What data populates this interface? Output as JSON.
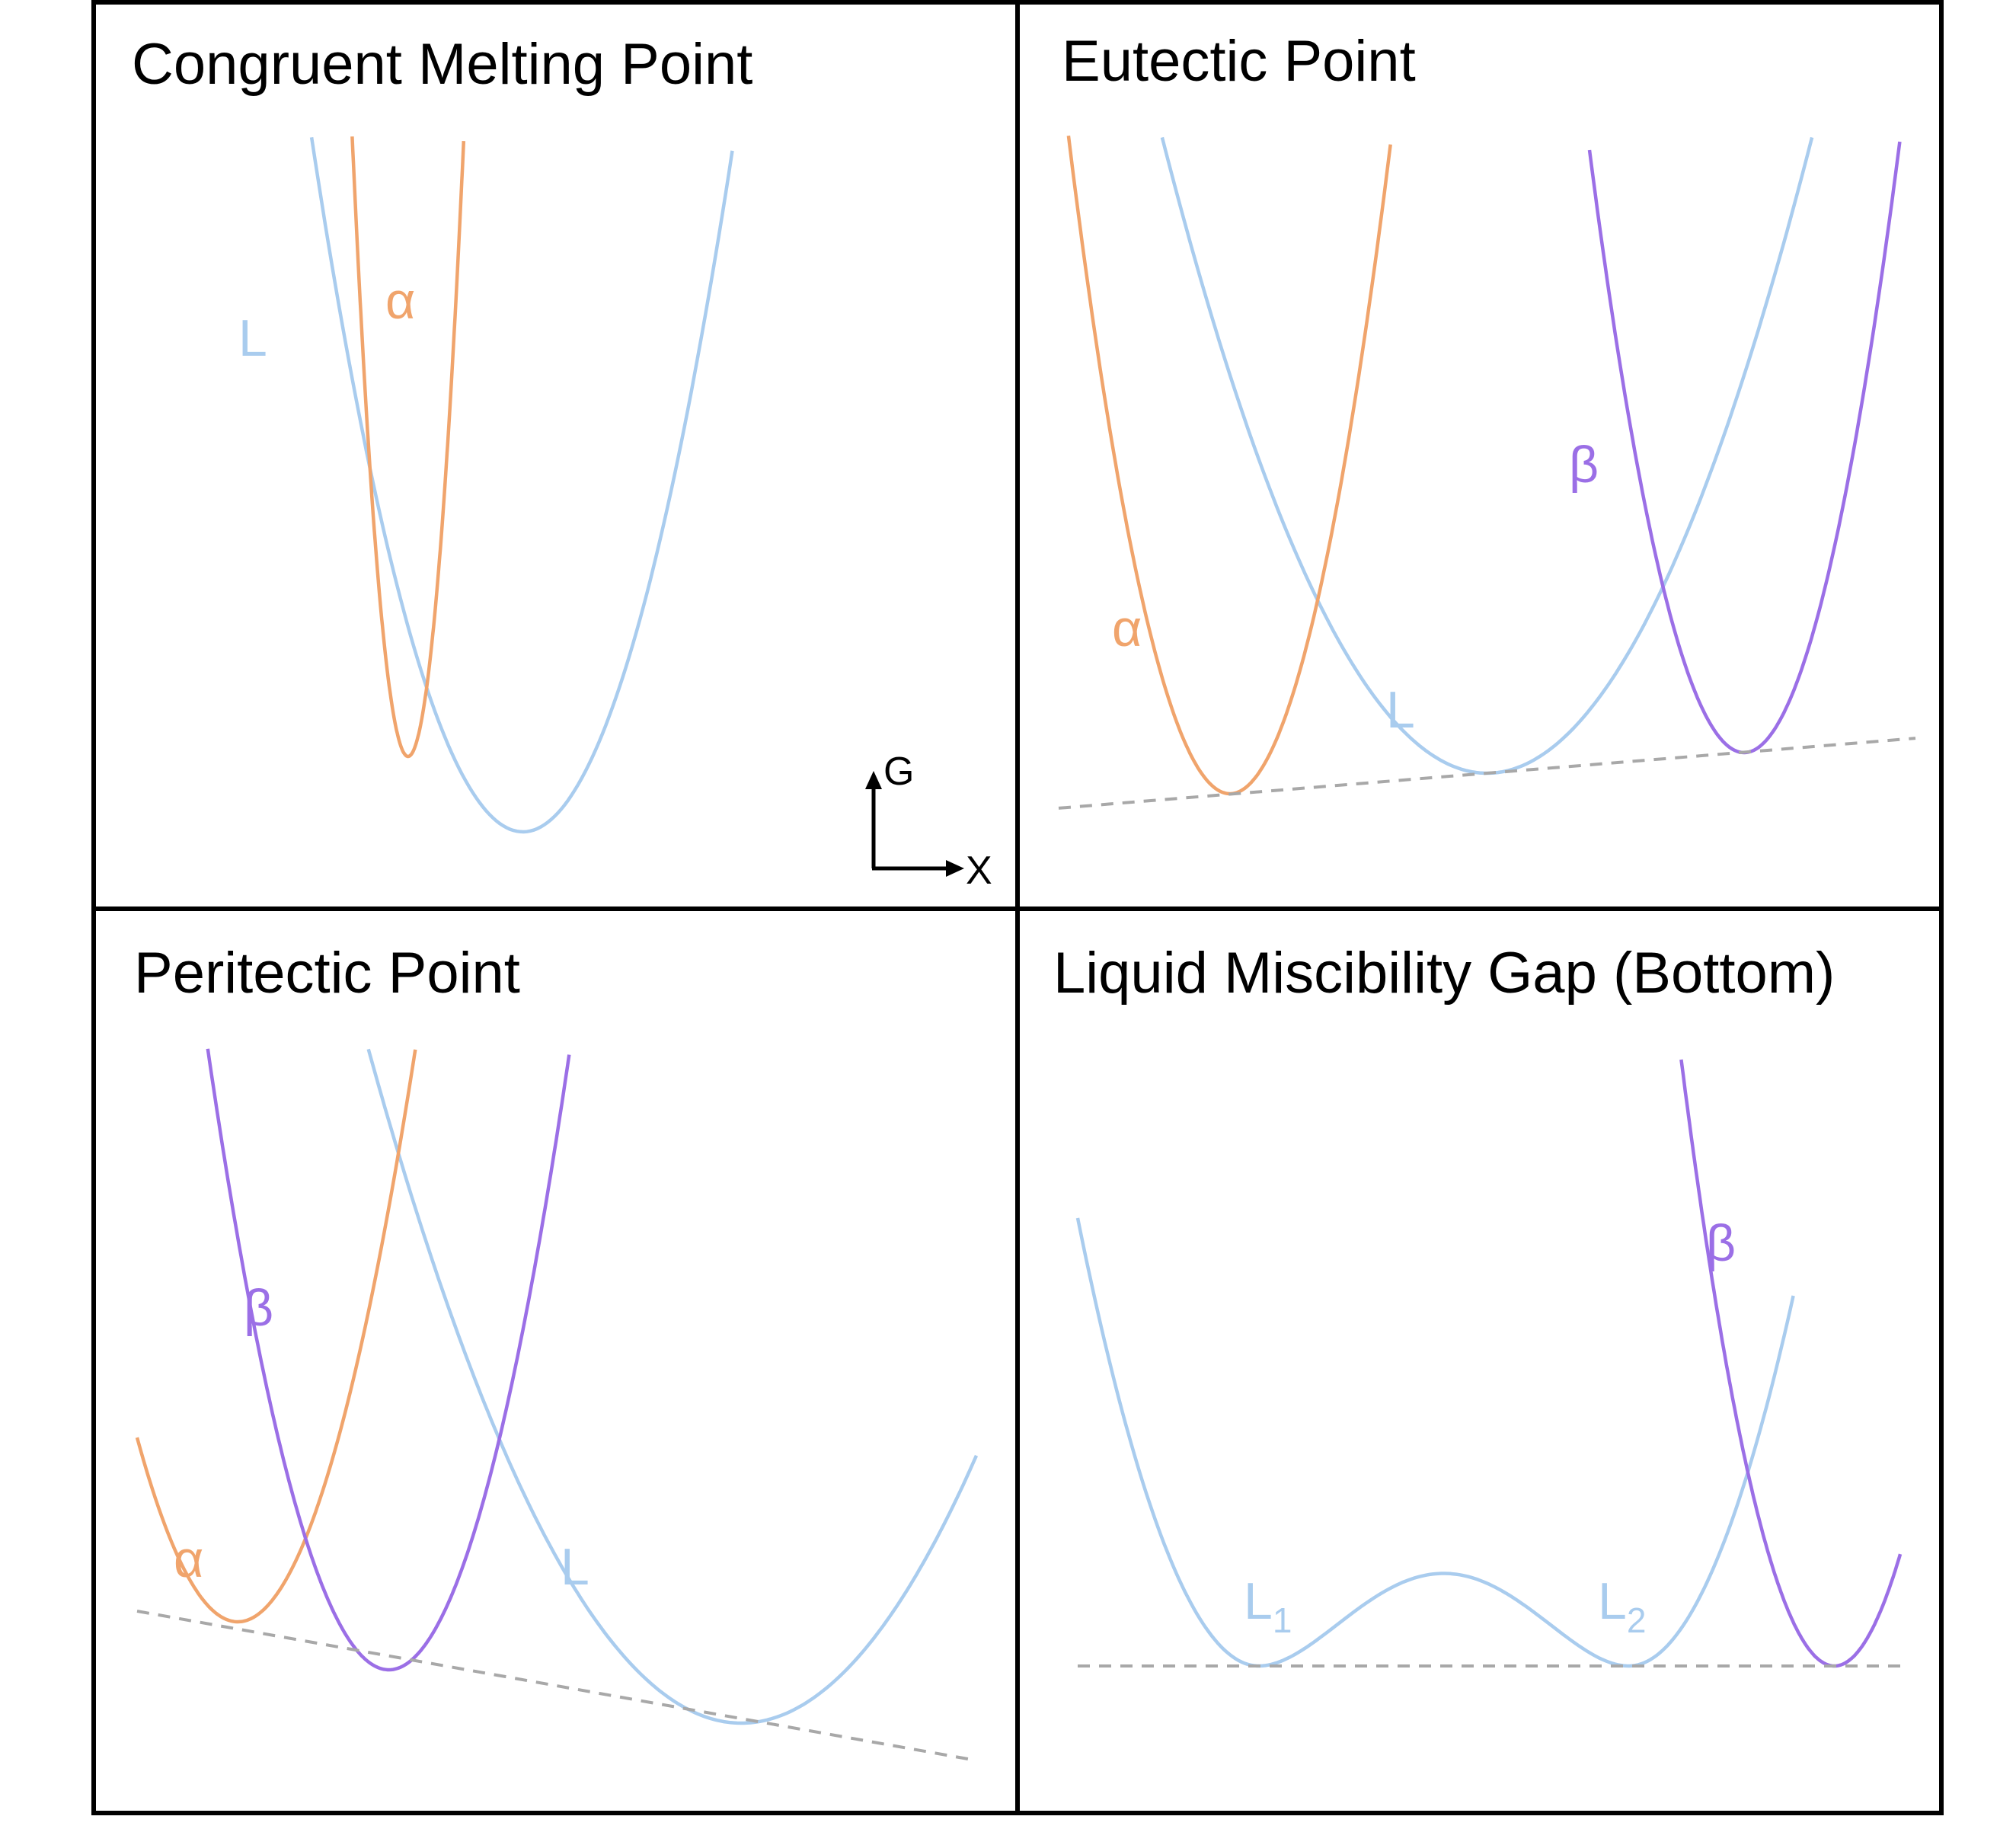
{
  "colors": {
    "liquid": "#A9CCEE",
    "alpha": "#F0A46C",
    "beta": "#9B6FE6",
    "tangent": "#A8A8A8",
    "frame": "#000000"
  },
  "panels": [
    {
      "id": "congruent",
      "title": "Congruent Melting Point",
      "curves": [
        {
          "name": "L",
          "phase": "liquid",
          "label": "L",
          "kind": "parabola",
          "x0": 0.47,
          "y0": 0.0,
          "k": 12.5,
          "xmin": 0.0,
          "xmax": 1.0
        },
        {
          "name": "α",
          "phase": "alpha",
          "label": "α",
          "kind": "parabola",
          "x0": 0.33,
          "y0": 0.09,
          "k": 160,
          "xmin": 0.25,
          "xmax": 0.43
        }
      ],
      "tangents": [],
      "axis_legend": {
        "y": "G",
        "x": "X"
      }
    },
    {
      "id": "eutectic",
      "title": "Eutectic Point",
      "curves": [
        {
          "name": "L",
          "phase": "liquid",
          "label": "L",
          "kind": "parabola",
          "x0": 0.5,
          "y0": 0.0,
          "k": 4.3,
          "xmin": 0.0,
          "xmax": 1.0
        },
        {
          "name": "α",
          "phase": "alpha",
          "label": "α",
          "kind": "parabola",
          "x0": 0.2,
          "y0": -0.02,
          "k": 18.0,
          "xmin": 0.0,
          "xmax": 0.55
        },
        {
          "name": "β",
          "phase": "beta",
          "label": "β",
          "kind": "parabola",
          "x0": 0.8,
          "y0": 0.02,
          "k": 18.0,
          "xmin": 0.45,
          "xmax": 1.0
        }
      ],
      "tangents": [
        {
          "from": [
            0.0,
            -0.034
          ],
          "to": [
            1.0,
            0.034
          ]
        }
      ],
      "axis_legend": null
    },
    {
      "id": "peritectic",
      "title": "Peritectic Point",
      "curves": [
        {
          "name": "L",
          "phase": "liquid",
          "label": "L",
          "kind": "parabola",
          "x0": 0.72,
          "y0": 0.0,
          "k": 3.2,
          "xmin": 0.05,
          "xmax": 1.0
        },
        {
          "name": "α",
          "phase": "alpha",
          "label": "α",
          "kind": "parabola",
          "x0": 0.12,
          "y0": 0.095,
          "k": 12.0,
          "xmin": 0.0,
          "xmax": 0.37
        },
        {
          "name": "β",
          "phase": "beta",
          "label": "β",
          "kind": "parabola",
          "x0": 0.3,
          "y0": 0.05,
          "k": 12.5,
          "xmin": 0.04,
          "xmax": 0.57
        }
      ],
      "tangents": [
        {
          "from": [
            0.0,
            0.105
          ],
          "to": [
            1.0,
            -0.035
          ]
        }
      ],
      "axis_legend": null
    },
    {
      "id": "miscibility",
      "title": "Liquid Miscibility Gap (Bottom)",
      "curves": [
        {
          "name": "L",
          "phase": "liquid",
          "label": "",
          "kind": "double-well",
          "a": 0.22,
          "b": 0.67,
          "k": 9.0,
          "bump": 0.09,
          "xmin": 0.0,
          "xmax": 0.87
        },
        {
          "name": "β",
          "phase": "beta",
          "label": "β",
          "kind": "parabola",
          "x0": 0.92,
          "y0": 0.0,
          "k": 17.0,
          "xmin": 0.7,
          "xmax": 1.0
        }
      ],
      "tangents": [
        {
          "from": [
            0.0,
            0.0
          ],
          "to": [
            1.0,
            0.0
          ]
        }
      ],
      "labels": [
        {
          "text": "L",
          "sub": "1",
          "phase": "liquid"
        },
        {
          "text": "L",
          "sub": "2",
          "phase": "liquid"
        }
      ],
      "axis_legend": null
    }
  ]
}
